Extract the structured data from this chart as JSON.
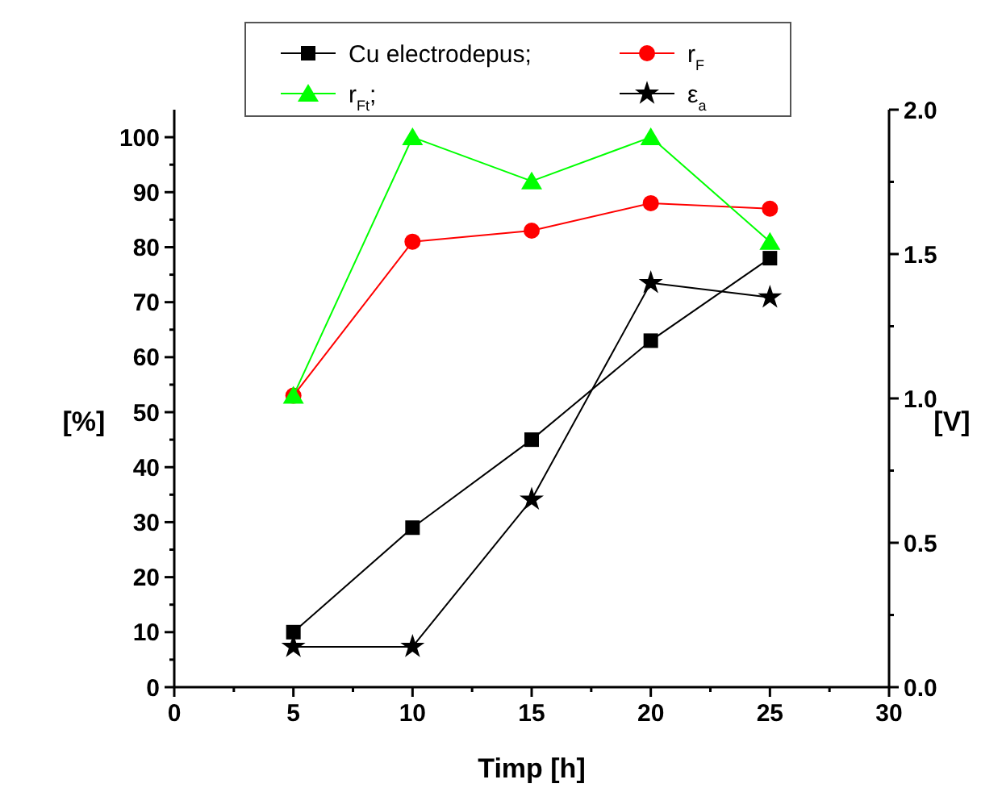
{
  "chart_data": {
    "type": "line",
    "xlabel": "Timp [h]",
    "ylabel": "[%]",
    "y2label": "[V]",
    "x": [
      5,
      10,
      15,
      20,
      25
    ],
    "xlim": [
      0,
      30
    ],
    "xticks": [
      0,
      {
        "value": 2.5,
        "label": null
      },
      5,
      {
        "value": 7.5,
        "label": null
      },
      10,
      {
        "value": 12.5,
        "label": null
      },
      15,
      {
        "value": 17.5,
        "label": null
      },
      20,
      {
        "value": 22.5,
        "label": null
      },
      25,
      {
        "value": 27.5,
        "label": null
      },
      30
    ],
    "ylim": [
      0,
      105
    ],
    "yticks": [
      0,
      {
        "value": 5,
        "label": null
      },
      10,
      {
        "value": 15,
        "label": null
      },
      20,
      {
        "value": 25,
        "label": null
      },
      30,
      {
        "value": 35,
        "label": null
      },
      40,
      {
        "value": 45,
        "label": null
      },
      50,
      {
        "value": 55,
        "label": null
      },
      60,
      {
        "value": 65,
        "label": null
      },
      70,
      {
        "value": 75,
        "label": null
      },
      80,
      {
        "value": 85,
        "label": null
      },
      90,
      {
        "value": 95,
        "label": null
      },
      100
    ],
    "y2lim": [
      0,
      2.0
    ],
    "y2ticks": [
      {
        "value": 0,
        "label": "0.0"
      },
      {
        "value": 0.25,
        "label": null
      },
      0.5,
      {
        "value": 0.75,
        "label": null
      },
      {
        "value": 1,
        "label": "1.0"
      },
      {
        "value": 1.25,
        "label": null
      },
      1.5,
      {
        "value": 1.75,
        "label": null
      },
      {
        "value": 2,
        "label": "2.0"
      }
    ],
    "legend": "top",
    "line_style": "solid",
    "series": [
      {
        "name": "Cu electrodepus;",
        "color": "#000000",
        "marker": "square",
        "values": [
          10,
          29,
          45,
          63,
          78
        ]
      },
      {
        "name": "r$_{F}$",
        "color": "#ff0000",
        "marker": "circle",
        "values": [
          53,
          81,
          83,
          88,
          87
        ]
      },
      {
        "name": "r$_{Ft}$;",
        "color": "#00ff00",
        "marker": "triangle",
        "values": [
          53,
          100,
          92,
          100,
          81
        ]
      },
      {
        "name": "ε$_{a}$",
        "color": "#000000",
        "marker": "star",
        "axis": "y2",
        "values": [
          0.14,
          0.14,
          0.65,
          1.4,
          1.35
        ]
      }
    ]
  }
}
